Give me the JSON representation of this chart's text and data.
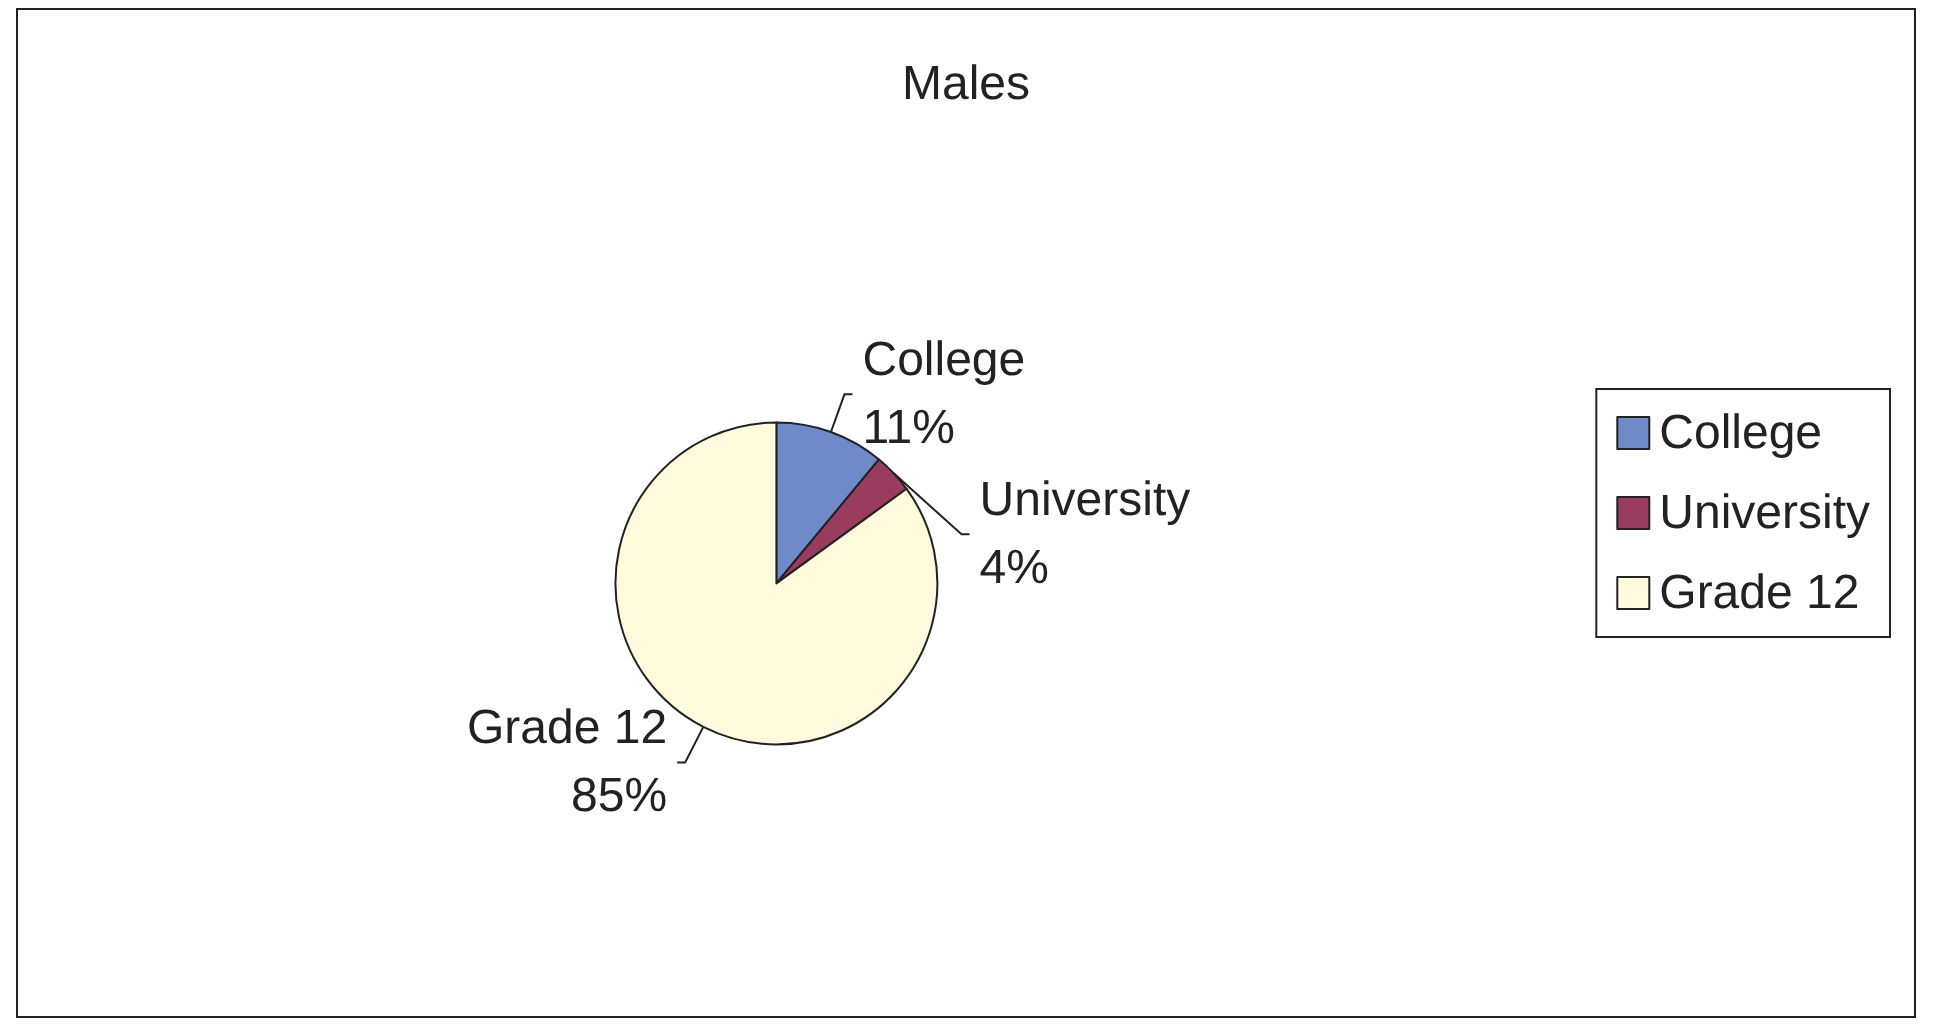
{
  "chart_data": {
    "type": "pie",
    "title": "Males",
    "categories": [
      "College",
      "University",
      "Grade 12"
    ],
    "values": [
      11,
      4,
      85
    ],
    "colors": [
      "#6f8ac8",
      "#9a3c5e",
      "#fffbdc"
    ],
    "value_labels": [
      "11%",
      "4%",
      "85%"
    ],
    "legend": "right"
  }
}
